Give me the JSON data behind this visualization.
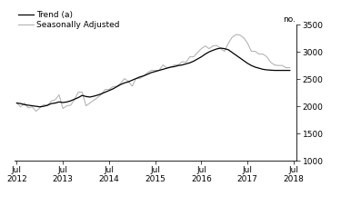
{
  "title": "",
  "ylabel_right": "no.",
  "ylim": [
    1000,
    3500
  ],
  "yticks": [
    1000,
    1500,
    2000,
    2500,
    3000,
    3500
  ],
  "xtick_labels": [
    "Jul\n2012",
    "Jul\n2013",
    "Jul\n2014",
    "Jul\n2015",
    "Jul\n2016",
    "Jul\n2017",
    "Jul\n2018"
  ],
  "legend_entries": [
    "Trend (a)",
    "Seasonally Adjusted"
  ],
  "trend_color": "#000000",
  "seasonal_color": "#b0b0b0",
  "background_color": "#ffffff",
  "trend_linewidth": 0.9,
  "seasonal_linewidth": 0.75,
  "trend": [
    2060,
    2050,
    2030,
    2020,
    2010,
    2000,
    1990,
    2000,
    2020,
    2050,
    2060,
    2080,
    2070,
    2080,
    2100,
    2130,
    2160,
    2200,
    2180,
    2170,
    2185,
    2205,
    2230,
    2260,
    2290,
    2320,
    2360,
    2400,
    2430,
    2450,
    2480,
    2510,
    2540,
    2560,
    2590,
    2620,
    2640,
    2660,
    2680,
    2700,
    2720,
    2730,
    2750,
    2760,
    2780,
    2800,
    2830,
    2870,
    2910,
    2960,
    3000,
    3030,
    3055,
    3070,
    3060,
    3040,
    2990,
    2940,
    2890,
    2840,
    2790,
    2750,
    2720,
    2700,
    2680,
    2670,
    2665,
    2660,
    2660,
    2660,
    2660,
    2660
  ],
  "seasonal": [
    2060,
    1990,
    2060,
    1970,
    1990,
    1910,
    1970,
    2030,
    2010,
    2100,
    2120,
    2210,
    1960,
    2010,
    2020,
    2120,
    2260,
    2260,
    2010,
    2060,
    2110,
    2160,
    2220,
    2310,
    2310,
    2360,
    2370,
    2420,
    2510,
    2460,
    2370,
    2510,
    2510,
    2560,
    2620,
    2660,
    2660,
    2660,
    2760,
    2710,
    2720,
    2760,
    2760,
    2820,
    2810,
    2910,
    2910,
    2990,
    3060,
    3110,
    3060,
    3110,
    3120,
    3060,
    3010,
    3160,
    3270,
    3320,
    3310,
    3260,
    3160,
    3010,
    3010,
    2960,
    2960,
    2910,
    2810,
    2760,
    2750,
    2750,
    2710,
    2710
  ]
}
